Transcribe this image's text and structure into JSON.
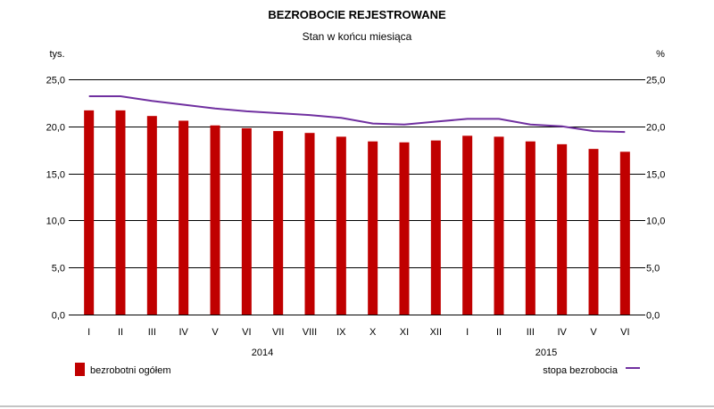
{
  "chart_data": {
    "type": "bar",
    "title": "BEZROBOCIE REJESTROWANE",
    "subtitle": "Stan w końcu miesiąca",
    "ylabel_left": "tys.",
    "ylabel_right": "%",
    "ylim": [
      0,
      25
    ],
    "yticks": [
      "0,0",
      "5,0",
      "10,0",
      "15,0",
      "20,0",
      "25,0"
    ],
    "categories": [
      "I",
      "II",
      "III",
      "IV",
      "V",
      "VI",
      "VII",
      "VIII",
      "IX",
      "X",
      "XI",
      "XII",
      "I",
      "II",
      "III",
      "IV",
      "V",
      "VI"
    ],
    "years": [
      {
        "label": "2014",
        "start": 0,
        "end": 11
      },
      {
        "label": "2015",
        "start": 12,
        "end": 17
      }
    ],
    "series": [
      {
        "name": "bezrobotni ogółem",
        "type": "bar",
        "axis": "left",
        "color": "#c00000",
        "values": [
          21.7,
          21.7,
          21.1,
          20.6,
          20.1,
          19.8,
          19.5,
          19.3,
          18.9,
          18.4,
          18.3,
          18.5,
          19.0,
          18.9,
          18.4,
          18.1,
          17.6,
          17.3
        ]
      },
      {
        "name": "stopa bezrobocia",
        "type": "line",
        "axis": "right",
        "color": "#7030a0",
        "values": [
          23.2,
          23.2,
          22.7,
          22.3,
          21.9,
          21.6,
          21.4,
          21.2,
          20.9,
          20.3,
          20.2,
          20.5,
          20.8,
          20.8,
          20.2,
          20.0,
          19.5,
          19.4
        ]
      }
    ],
    "legend": {
      "placement": "bottom"
    },
    "grid": true
  }
}
